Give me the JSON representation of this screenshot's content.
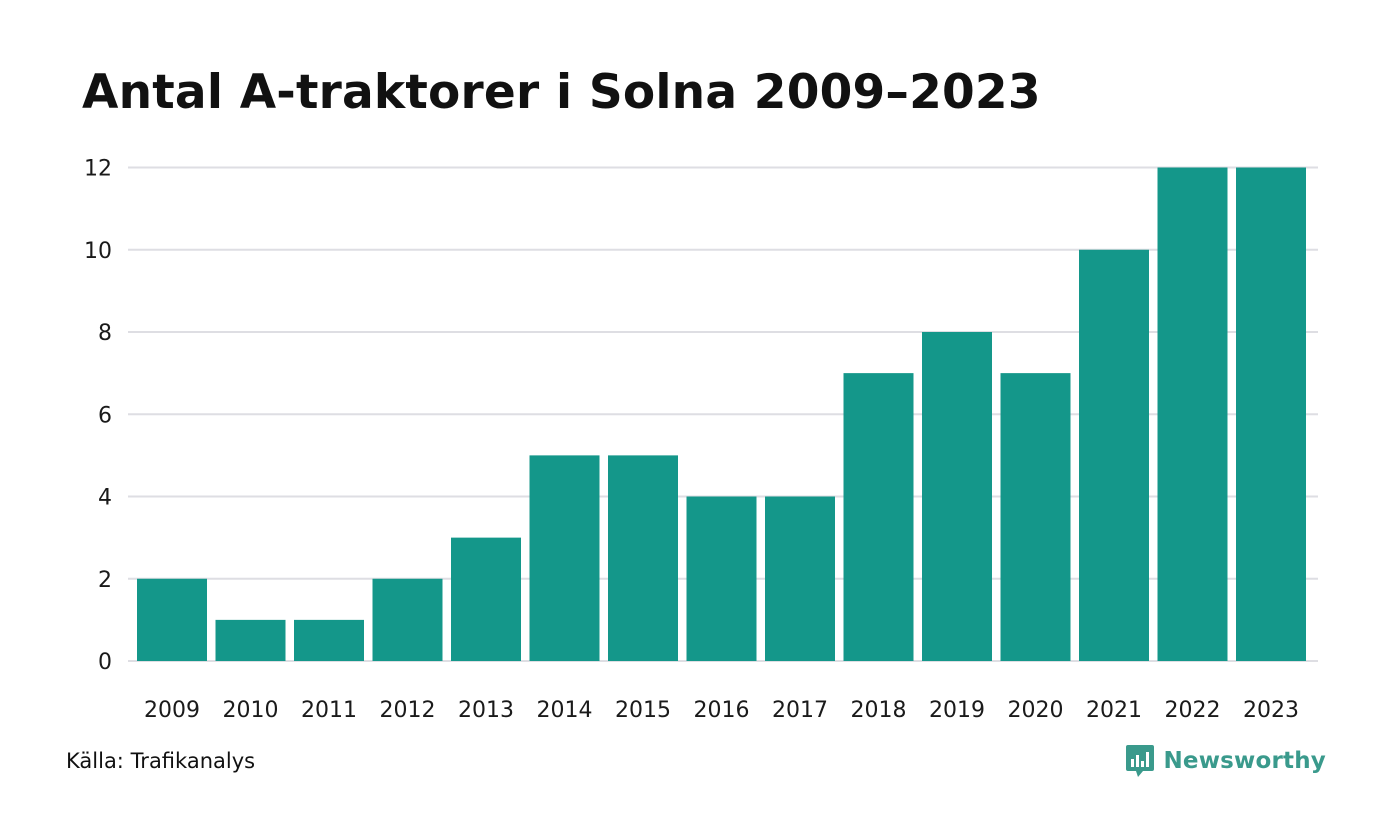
{
  "title": "Antal A-traktorer i Solna 2009–2023",
  "source": {
    "prefix": "Källa: ",
    "name": "Trafikanalys"
  },
  "brand": {
    "name": "Newsworthy",
    "icon": "newsworthy-logo-icon",
    "color": "#3a9a8c"
  },
  "colors": {
    "bar": "#14978a",
    "grid": "#dedee3"
  },
  "chart_data": {
    "type": "bar",
    "title": "Antal A-traktorer i Solna 2009–2023",
    "xlabel": "",
    "ylabel": "",
    "categories": [
      "2009",
      "2010",
      "2011",
      "2012",
      "2013",
      "2014",
      "2015",
      "2016",
      "2017",
      "2018",
      "2019",
      "2020",
      "2021",
      "2022",
      "2023"
    ],
    "values": [
      2,
      1,
      1,
      2,
      3,
      5,
      5,
      4,
      4,
      7,
      8,
      7,
      10,
      12,
      12
    ],
    "ylim": [
      0,
      12
    ],
    "yticks": [
      0,
      2,
      4,
      6,
      8,
      10,
      12
    ],
    "grid": true,
    "legend": "none"
  }
}
